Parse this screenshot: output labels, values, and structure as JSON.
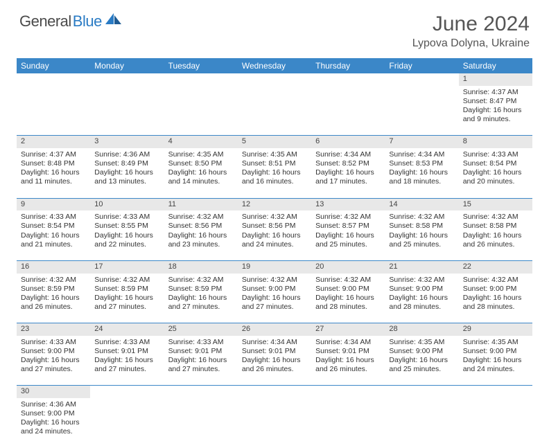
{
  "brand": {
    "part1": "General",
    "part2": "Blue"
  },
  "header": {
    "title": "June 2024",
    "location": "Lypova Dolyna, Ukraine"
  },
  "style": {
    "header_bg": "#3b87c8",
    "header_text": "#ffffff",
    "daynum_bg": "#e8e8e8",
    "border_color": "#3b87c8",
    "brand_color1": "#4a4a4a",
    "brand_color2": "#2a7bc4",
    "title_color": "#555555",
    "body_text": "#333333",
    "title_fontsize": 30,
    "location_fontsize": 16,
    "header_th_fontsize": 12,
    "cell_fontsize": 10.5
  },
  "calendar": {
    "columns": [
      "Sunday",
      "Monday",
      "Tuesday",
      "Wednesday",
      "Thursday",
      "Friday",
      "Saturday"
    ],
    "weeks": [
      {
        "days": [
          null,
          null,
          null,
          null,
          null,
          null,
          {
            "n": "1",
            "sunrise": "4:37 AM",
            "sunset": "8:47 PM",
            "daylight": "16 hours and 9 minutes."
          }
        ]
      },
      {
        "days": [
          {
            "n": "2",
            "sunrise": "4:37 AM",
            "sunset": "8:48 PM",
            "daylight": "16 hours and 11 minutes."
          },
          {
            "n": "3",
            "sunrise": "4:36 AM",
            "sunset": "8:49 PM",
            "daylight": "16 hours and 13 minutes."
          },
          {
            "n": "4",
            "sunrise": "4:35 AM",
            "sunset": "8:50 PM",
            "daylight": "16 hours and 14 minutes."
          },
          {
            "n": "5",
            "sunrise": "4:35 AM",
            "sunset": "8:51 PM",
            "daylight": "16 hours and 16 minutes."
          },
          {
            "n": "6",
            "sunrise": "4:34 AM",
            "sunset": "8:52 PM",
            "daylight": "16 hours and 17 minutes."
          },
          {
            "n": "7",
            "sunrise": "4:34 AM",
            "sunset": "8:53 PM",
            "daylight": "16 hours and 18 minutes."
          },
          {
            "n": "8",
            "sunrise": "4:33 AM",
            "sunset": "8:54 PM",
            "daylight": "16 hours and 20 minutes."
          }
        ]
      },
      {
        "days": [
          {
            "n": "9",
            "sunrise": "4:33 AM",
            "sunset": "8:54 PM",
            "daylight": "16 hours and 21 minutes."
          },
          {
            "n": "10",
            "sunrise": "4:33 AM",
            "sunset": "8:55 PM",
            "daylight": "16 hours and 22 minutes."
          },
          {
            "n": "11",
            "sunrise": "4:32 AM",
            "sunset": "8:56 PM",
            "daylight": "16 hours and 23 minutes."
          },
          {
            "n": "12",
            "sunrise": "4:32 AM",
            "sunset": "8:56 PM",
            "daylight": "16 hours and 24 minutes."
          },
          {
            "n": "13",
            "sunrise": "4:32 AM",
            "sunset": "8:57 PM",
            "daylight": "16 hours and 25 minutes."
          },
          {
            "n": "14",
            "sunrise": "4:32 AM",
            "sunset": "8:58 PM",
            "daylight": "16 hours and 25 minutes."
          },
          {
            "n": "15",
            "sunrise": "4:32 AM",
            "sunset": "8:58 PM",
            "daylight": "16 hours and 26 minutes."
          }
        ]
      },
      {
        "days": [
          {
            "n": "16",
            "sunrise": "4:32 AM",
            "sunset": "8:59 PM",
            "daylight": "16 hours and 26 minutes."
          },
          {
            "n": "17",
            "sunrise": "4:32 AM",
            "sunset": "8:59 PM",
            "daylight": "16 hours and 27 minutes."
          },
          {
            "n": "18",
            "sunrise": "4:32 AM",
            "sunset": "8:59 PM",
            "daylight": "16 hours and 27 minutes."
          },
          {
            "n": "19",
            "sunrise": "4:32 AM",
            "sunset": "9:00 PM",
            "daylight": "16 hours and 27 minutes."
          },
          {
            "n": "20",
            "sunrise": "4:32 AM",
            "sunset": "9:00 PM",
            "daylight": "16 hours and 28 minutes."
          },
          {
            "n": "21",
            "sunrise": "4:32 AM",
            "sunset": "9:00 PM",
            "daylight": "16 hours and 28 minutes."
          },
          {
            "n": "22",
            "sunrise": "4:32 AM",
            "sunset": "9:00 PM",
            "daylight": "16 hours and 28 minutes."
          }
        ]
      },
      {
        "days": [
          {
            "n": "23",
            "sunrise": "4:33 AM",
            "sunset": "9:00 PM",
            "daylight": "16 hours and 27 minutes."
          },
          {
            "n": "24",
            "sunrise": "4:33 AM",
            "sunset": "9:01 PM",
            "daylight": "16 hours and 27 minutes."
          },
          {
            "n": "25",
            "sunrise": "4:33 AM",
            "sunset": "9:01 PM",
            "daylight": "16 hours and 27 minutes."
          },
          {
            "n": "26",
            "sunrise": "4:34 AM",
            "sunset": "9:01 PM",
            "daylight": "16 hours and 26 minutes."
          },
          {
            "n": "27",
            "sunrise": "4:34 AM",
            "sunset": "9:01 PM",
            "daylight": "16 hours and 26 minutes."
          },
          {
            "n": "28",
            "sunrise": "4:35 AM",
            "sunset": "9:00 PM",
            "daylight": "16 hours and 25 minutes."
          },
          {
            "n": "29",
            "sunrise": "4:35 AM",
            "sunset": "9:00 PM",
            "daylight": "16 hours and 24 minutes."
          }
        ]
      },
      {
        "days": [
          {
            "n": "30",
            "sunrise": "4:36 AM",
            "sunset": "9:00 PM",
            "daylight": "16 hours and 24 minutes."
          },
          null,
          null,
          null,
          null,
          null,
          null
        ]
      }
    ],
    "labels": {
      "sunrise_prefix": "Sunrise: ",
      "sunset_prefix": "Sunset: ",
      "daylight_prefix": "Daylight: "
    }
  }
}
